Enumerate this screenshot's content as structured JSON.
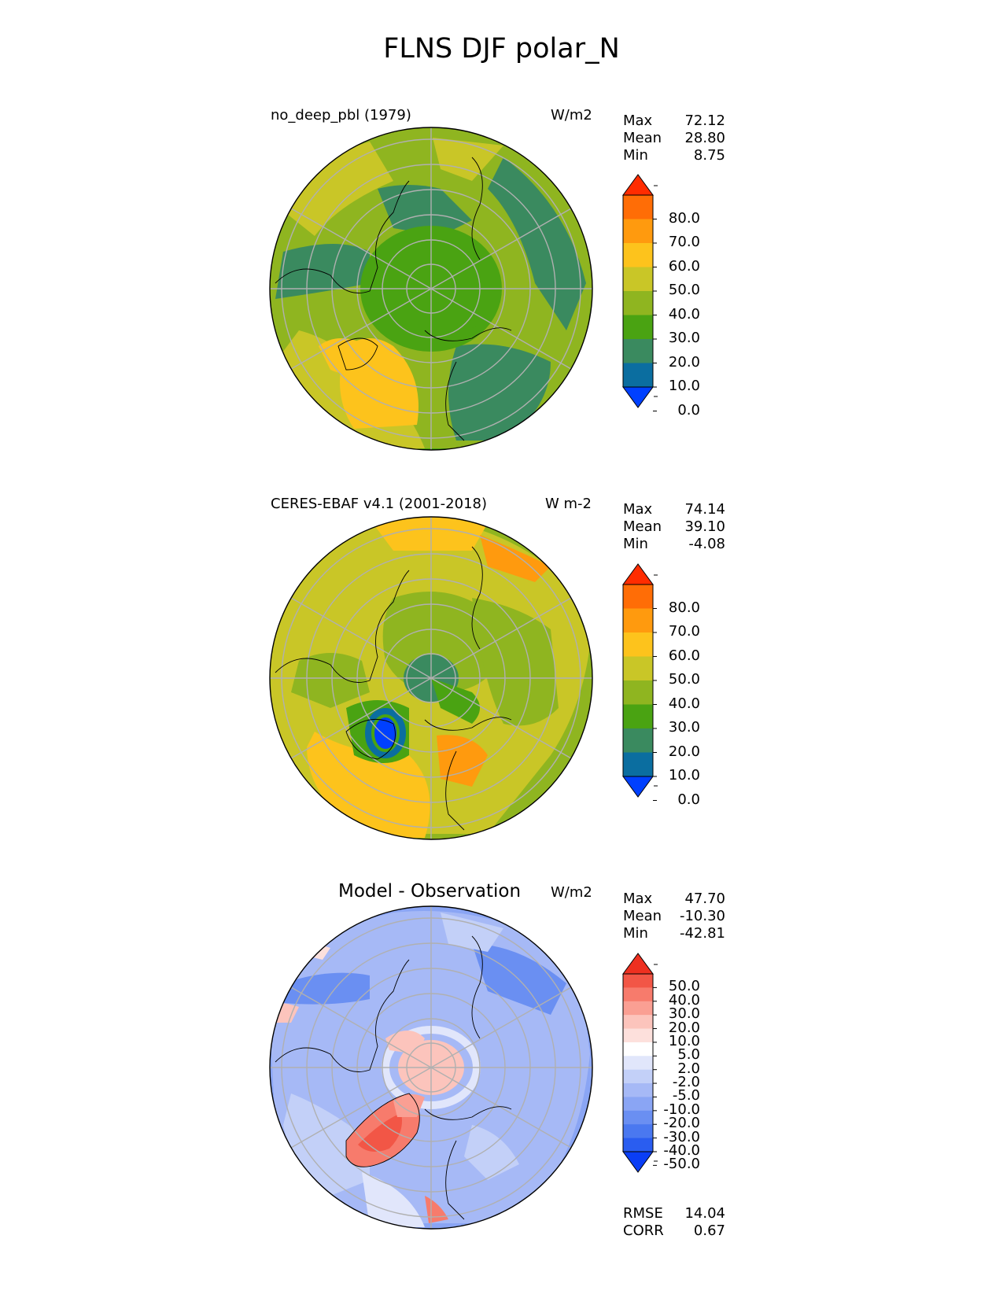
{
  "title": "FLNS DJF polar_N",
  "panels": [
    {
      "left_label": "no_deep_pbl (1979)",
      "units": "W/m2",
      "stats": [
        {
          "name": "Max",
          "value": "72.12"
        },
        {
          "name": "Mean",
          "value": "28.80"
        },
        {
          "name": "Min",
          "value": "8.75"
        }
      ],
      "colorbar_ticks": [
        "80.0",
        "70.0",
        "60.0",
        "50.0",
        "40.0",
        "30.0",
        "20.0",
        "10.0",
        "0.0"
      ]
    },
    {
      "left_label": "CERES-EBAF v4.1 (2001-2018)",
      "units": "W m-2",
      "stats": [
        {
          "name": "Max",
          "value": "74.14"
        },
        {
          "name": "Mean",
          "value": "39.10"
        },
        {
          "name": "Min",
          "value": "-4.08"
        }
      ],
      "colorbar_ticks": [
        "80.0",
        "70.0",
        "60.0",
        "50.0",
        "40.0",
        "30.0",
        "20.0",
        "10.0",
        "0.0"
      ]
    },
    {
      "center_label": "Model - Observation",
      "units": "W/m2",
      "stats": [
        {
          "name": "Max",
          "value": "47.70"
        },
        {
          "name": "Mean",
          "value": "-10.30"
        },
        {
          "name": "Min",
          "value": "-42.81"
        }
      ],
      "colorbar_ticks": [
        "50.0",
        "40.0",
        "30.0",
        "20.0",
        "10.0",
        "5.0",
        "2.0",
        "-2.0",
        "-5.0",
        "-10.0",
        "-20.0",
        "-30.0",
        "-40.0",
        "-50.0"
      ],
      "rmse": {
        "name": "RMSE",
        "value": "14.04"
      },
      "corr": {
        "name": "CORR",
        "value": "0.67"
      }
    }
  ],
  "colors": {
    "abs_levels": [
      "#0040ff",
      "#0b6ea0",
      "#3a8a5f",
      "#4aa312",
      "#8fb520",
      "#c9c627",
      "#fdc31c",
      "#ff9a0e",
      "#ff6d06",
      "#ff2c00"
    ],
    "diff_levels": [
      "#0a3ef5",
      "#2a5df0",
      "#4a78f0",
      "#6a8ff2",
      "#8aa5f4",
      "#a6b9f6",
      "#c3d0f8",
      "#e1e6fb",
      "#ffffff",
      "#fde0dc",
      "#fcc4bc",
      "#fa9f93",
      "#f77b6c",
      "#f25646",
      "#ee3020"
    ]
  },
  "chart_data": [
    {
      "type": "heatmap",
      "title": "no_deep_pbl (1979)",
      "projection": "north polar stereographic",
      "units": "W/m2",
      "colorbar_levels": [
        0,
        10,
        20,
        30,
        40,
        50,
        60,
        70,
        80
      ],
      "max": 72.12,
      "mean": 28.8,
      "min": 8.75
    },
    {
      "type": "heatmap",
      "title": "CERES-EBAF v4.1 (2001-2018)",
      "projection": "north polar stereographic",
      "units": "W m-2",
      "colorbar_levels": [
        0,
        10,
        20,
        30,
        40,
        50,
        60,
        70,
        80
      ],
      "max": 74.14,
      "mean": 39.1,
      "min": -4.08
    },
    {
      "type": "heatmap",
      "title": "Model - Observation",
      "projection": "north polar stereographic",
      "units": "W/m2",
      "colorbar_levels": [
        -50,
        -40,
        -30,
        -20,
        -10,
        -5,
        -2,
        2,
        5,
        10,
        20,
        30,
        40,
        50
      ],
      "max": 47.7,
      "mean": -10.3,
      "min": -42.81,
      "rmse": 14.04,
      "corr": 0.67
    }
  ]
}
